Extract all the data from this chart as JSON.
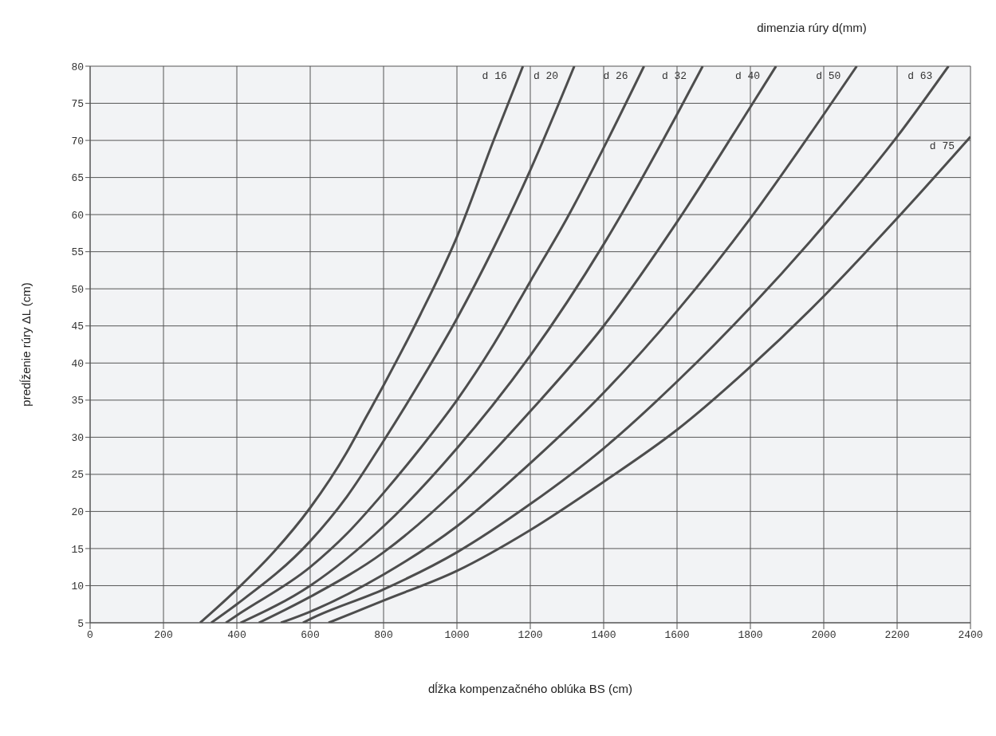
{
  "chart_data": {
    "type": "line",
    "xlabel": "dĺžka kompenzačného oblúka BS (cm)",
    "ylabel": "predĺženie rúry ΔL (cm)",
    "annotations": [
      "dimenzia rúry d(mm)"
    ],
    "xlim": [
      0,
      2400
    ],
    "xticks": [
      0,
      200,
      400,
      600,
      800,
      1000,
      1200,
      1400,
      1600,
      1800,
      2000,
      2200,
      2400
    ],
    "ylim": [
      5,
      80
    ],
    "yticks": [
      5,
      10,
      15,
      20,
      25,
      30,
      35,
      40,
      45,
      50,
      55,
      60,
      65,
      70,
      75,
      80
    ],
    "grid": true,
    "legend": false,
    "marker": "none",
    "line_style": "solid",
    "series": [
      {
        "name": "d 16",
        "color": "#4d4d4d",
        "x": [
          300,
          400,
          500,
          600,
          700,
          750,
          800,
          900,
          1000,
          1100,
          1180
        ],
        "values": [
          5,
          9.5,
          14.5,
          20.5,
          28,
          32.5,
          37,
          46.5,
          57,
          70,
          80
        ]
      },
      {
        "name": "d 20",
        "color": "#4d4d4d",
        "x": [
          330,
          400,
          600,
          700,
          800,
          900,
          1000,
          1100,
          1200,
          1320
        ],
        "values": [
          5,
          7.5,
          16,
          22,
          29.5,
          37.5,
          46,
          55.5,
          66,
          80
        ]
      },
      {
        "name": "d 26",
        "color": "#4d4d4d",
        "x": [
          370,
          400,
          600,
          700,
          800,
          900,
          1000,
          1100,
          1200,
          1300,
          1400,
          1510
        ],
        "values": [
          5,
          6,
          12.5,
          17,
          22.5,
          28.5,
          35,
          42.5,
          51,
          59.5,
          69,
          80
        ]
      },
      {
        "name": "d 32",
        "color": "#4d4d4d",
        "x": [
          410,
          600,
          800,
          1000,
          1200,
          1400,
          1600,
          1670
        ],
        "values": [
          5,
          10,
          18,
          28.5,
          41,
          56,
          73.5,
          80
        ]
      },
      {
        "name": "d 40",
        "color": "#4d4d4d",
        "x": [
          460,
          600,
          800,
          1000,
          1200,
          1400,
          1600,
          1800,
          1870
        ],
        "values": [
          5,
          8.5,
          14.5,
          23,
          33.5,
          45,
          59,
          74.5,
          80
        ]
      },
      {
        "name": "d 50",
        "color": "#4d4d4d",
        "x": [
          520,
          600,
          800,
          1000,
          1200,
          1400,
          1600,
          1800,
          2000,
          2090
        ],
        "values": [
          5,
          6.5,
          11.5,
          18,
          26.5,
          36,
          47,
          59.5,
          73.5,
          80
        ]
      },
      {
        "name": "d 63",
        "color": "#4d4d4d",
        "x": [
          580,
          600,
          800,
          1000,
          1200,
          1400,
          1600,
          1800,
          2000,
          2200,
          2340
        ],
        "values": [
          5,
          5.5,
          9.5,
          14.5,
          21,
          28.5,
          37.5,
          47.5,
          58.5,
          70.5,
          80
        ]
      },
      {
        "name": "d 75",
        "color": "#4d4d4d",
        "x": [
          650,
          800,
          1000,
          1200,
          1400,
          1600,
          1800,
          2000,
          2200,
          2400
        ],
        "values": [
          5,
          8,
          12,
          17.5,
          24,
          31,
          39.5,
          49,
          59.5,
          70.5
        ]
      }
    ]
  }
}
